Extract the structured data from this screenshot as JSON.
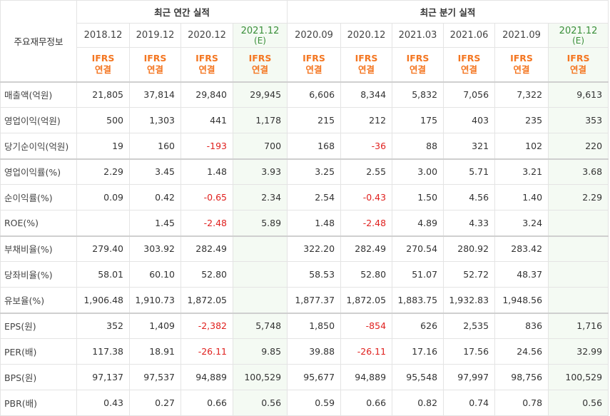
{
  "header": {
    "row_label": "주요재무정보",
    "annual_title": "최근 연간 실적",
    "quarterly_title": "최근 분기 실적",
    "periods": [
      {
        "label": "2018.12",
        "est": ""
      },
      {
        "label": "2019.12",
        "est": ""
      },
      {
        "label": "2020.12",
        "est": ""
      },
      {
        "label": "2021.12",
        "est": "(E)"
      },
      {
        "label": "2020.09",
        "est": ""
      },
      {
        "label": "2020.12",
        "est": ""
      },
      {
        "label": "2021.03",
        "est": ""
      },
      {
        "label": "2021.06",
        "est": ""
      },
      {
        "label": "2021.09",
        "est": ""
      },
      {
        "label": "2021.12",
        "est": "(E)"
      }
    ],
    "accounting": {
      "line1": "IFRS",
      "line2": "연결"
    }
  },
  "rows": [
    {
      "label": "매출액(억원)",
      "values": [
        "21,805",
        "37,814",
        "29,840",
        "29,945",
        "6,606",
        "8,344",
        "5,832",
        "7,056",
        "7,322",
        "9,613"
      ]
    },
    {
      "label": "영업이익(억원)",
      "values": [
        "500",
        "1,303",
        "441",
        "1,178",
        "215",
        "212",
        "175",
        "403",
        "235",
        "353"
      ]
    },
    {
      "label": "당기순이익(억원)",
      "values": [
        "19",
        "160",
        "-193",
        "700",
        "168",
        "-36",
        "88",
        "321",
        "102",
        "220"
      ]
    },
    {
      "label": "영업이익률(%)",
      "values": [
        "2.29",
        "3.45",
        "1.48",
        "3.93",
        "3.25",
        "2.55",
        "3.00",
        "5.71",
        "3.21",
        "3.68"
      ]
    },
    {
      "label": "순이익률(%)",
      "values": [
        "0.09",
        "0.42",
        "-0.65",
        "2.34",
        "2.54",
        "-0.43",
        "1.50",
        "4.56",
        "1.40",
        "2.29"
      ]
    },
    {
      "label": "ROE(%)",
      "values": [
        "",
        "1.45",
        "-2.48",
        "5.89",
        "1.48",
        "-2.48",
        "4.89",
        "4.33",
        "3.24",
        ""
      ]
    },
    {
      "label": "부채비율(%)",
      "values": [
        "279.40",
        "303.92",
        "282.49",
        "",
        "322.20",
        "282.49",
        "270.54",
        "280.92",
        "283.42",
        ""
      ]
    },
    {
      "label": "당좌비율(%)",
      "values": [
        "58.01",
        "60.10",
        "52.80",
        "",
        "58.53",
        "52.80",
        "51.07",
        "52.72",
        "48.37",
        ""
      ]
    },
    {
      "label": "유보율(%)",
      "values": [
        "1,906.48",
        "1,910.73",
        "1,872.05",
        "",
        "1,877.37",
        "1,872.05",
        "1,883.75",
        "1,932.83",
        "1,948.56",
        ""
      ]
    },
    {
      "label": "EPS(원)",
      "values": [
        "352",
        "1,409",
        "-2,382",
        "5,748",
        "1,850",
        "-854",
        "626",
        "2,535",
        "836",
        "1,716"
      ]
    },
    {
      "label": "PER(배)",
      "values": [
        "117.38",
        "18.91",
        "-26.11",
        "9.85",
        "39.88",
        "-26.11",
        "17.16",
        "17.56",
        "24.56",
        "32.99"
      ]
    },
    {
      "label": "BPS(원)",
      "values": [
        "97,137",
        "97,537",
        "94,889",
        "100,529",
        "95,677",
        "94,889",
        "95,548",
        "97,997",
        "98,756",
        "100,529"
      ]
    },
    {
      "label": "PBR(배)",
      "values": [
        "0.43",
        "0.27",
        "0.66",
        "0.56",
        "0.59",
        "0.66",
        "0.82",
        "0.74",
        "0.78",
        "0.56"
      ]
    }
  ],
  "colors": {
    "accounting": "#f47621",
    "negative": "#e0201e",
    "estimate_bg": "#f4faf3",
    "estimate_text": "#3a8f3a"
  }
}
